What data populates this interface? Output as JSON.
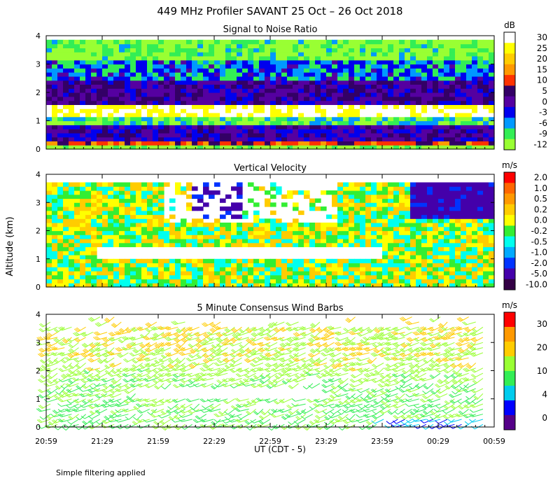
{
  "title": "449 MHz Profiler SAVANT 25 Oct – 26 Oct 2018",
  "footnote": "Simple filtering applied",
  "chart_data": [
    {
      "type": "heatmap",
      "title": "Signal to Noise Ratio",
      "xlabel": "UT  (CDT - 5)",
      "ylabel": "Altitude (km)",
      "ylim": [
        0,
        4
      ],
      "y_ticks": [
        "0",
        "1",
        "2",
        "3",
        "4"
      ],
      "x_ticks": [
        "20:59",
        "21:29",
        "21:59",
        "22:29",
        "22:59",
        "23:29",
        "23:59",
        "00:29",
        "00:59"
      ],
      "colorbar_unit": "dB",
      "colorbar_labels": [
        "30",
        "25",
        "20",
        "15",
        "10",
        "5",
        "0",
        "-3",
        "-6",
        "-9",
        "-12"
      ],
      "colorbar_colors": [
        "#ffffff",
        "#ffff00",
        "#ffcc00",
        "#ff9900",
        "#ff3300",
        "#330066",
        "#5500a0",
        "#0000ee",
        "#0099ff",
        "#33ee55",
        "#99ff33"
      ],
      "bands": [
        {
          "alt_km": [
            0.1,
            0.3
          ],
          "snr_db": 12
        },
        {
          "alt_km": [
            0.3,
            0.9
          ],
          "snr_db": 2
        },
        {
          "alt_km": [
            0.9,
            1.1
          ],
          "snr_db": -8
        },
        {
          "alt_km": [
            1.1,
            1.6
          ],
          "snr_db": 30
        },
        {
          "alt_km": [
            1.6,
            2.5
          ],
          "snr_db": 3
        },
        {
          "alt_km": [
            2.5,
            3.2
          ],
          "snr_db": -4
        },
        {
          "alt_km": [
            3.2,
            3.9
          ],
          "snr_db": -10
        }
      ]
    },
    {
      "type": "heatmap",
      "title": "Vertical Velocity",
      "ylim": [
        0,
        4
      ],
      "y_ticks": [
        "0",
        "1",
        "2",
        "3",
        "4"
      ],
      "colorbar_unit": "m/s",
      "colorbar_labels": [
        "2.0",
        "1.0",
        "0.5",
        "0.2",
        "0.0",
        "-0.2",
        "-0.5",
        "-1.0",
        "-2.0",
        "-5.0",
        "-10.0"
      ],
      "colorbar_colors": [
        "#ff0000",
        "#ff6600",
        "#ff9900",
        "#ffcc00",
        "#ffff00",
        "#33ee33",
        "#00ffee",
        "#00aaff",
        "#0033ff",
        "#4400aa",
        "#330044"
      ],
      "typical_range_ms": [
        -0.5,
        0.5
      ]
    },
    {
      "type": "scatter",
      "title": "5 Minute Consensus Wind Barbs",
      "ylim": [
        0,
        4
      ],
      "y_ticks": [
        "0",
        "1",
        "2",
        "3",
        "4"
      ],
      "colorbar_unit": "m/s",
      "colorbar_labels": [
        "30",
        "20",
        "10",
        "4",
        "0"
      ],
      "colorbar_colors": [
        "#ff0000",
        "#ff9900",
        "#ffcc00",
        "#99ff33",
        "#33ee55",
        "#00ccee",
        "#0000ff",
        "#550088"
      ],
      "speed_profile_ms": [
        {
          "alt_km": 0.5,
          "speed": 8
        },
        {
          "alt_km": 1.5,
          "speed": 9
        },
        {
          "alt_km": 2.2,
          "speed": 12
        },
        {
          "alt_km": 3.0,
          "speed": 14
        }
      ]
    }
  ]
}
